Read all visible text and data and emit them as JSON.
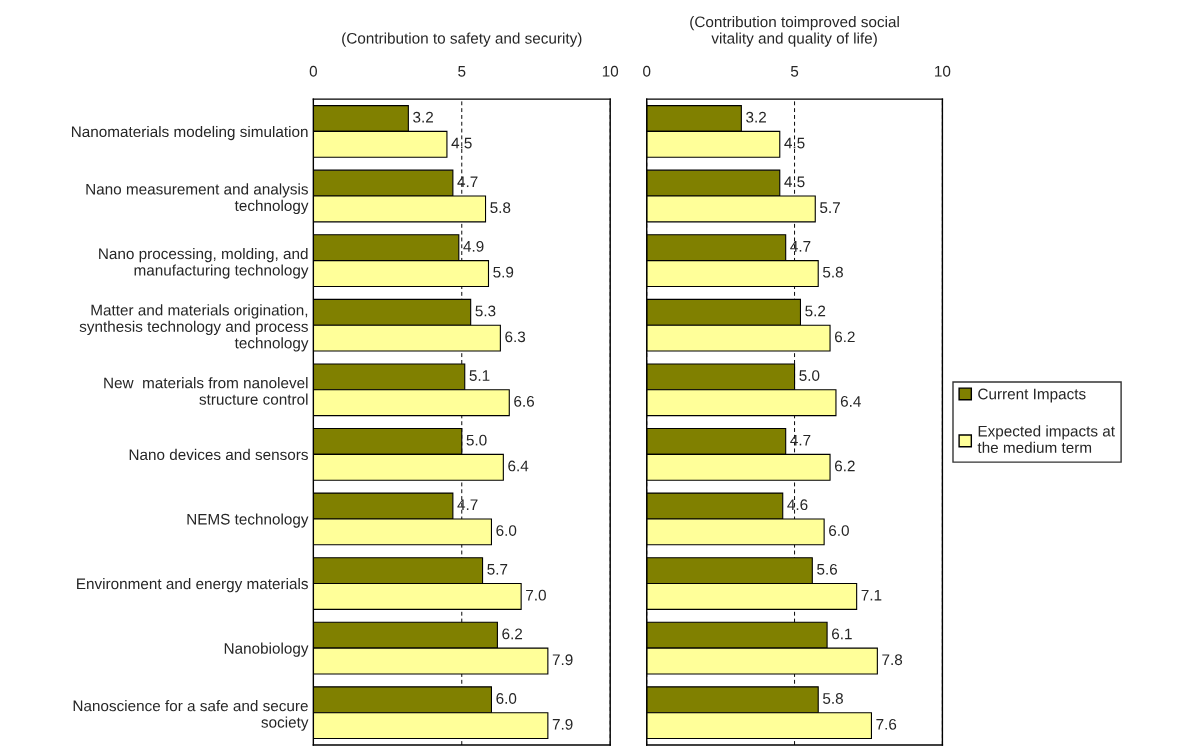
{
  "chart_data": [
    {
      "type": "bar",
      "orientation": "horizontal",
      "title": "(Contribution to safety and security)",
      "categories": [
        "Nanomaterials modeling simulation",
        "Nano measurement and analysis\ntechnology",
        "Nano processing, molding, and\nmanufacturing technology",
        "Matter and materials origination,\nsynthesis technology and process\ntechnology",
        "New  materials from nanolevel\nstructure control",
        "Nano devices and sensors",
        "NEMS technology",
        "Environment and energy materials",
        "Nanobiology",
        "Nanoscience for a safe and secure\nsociety"
      ],
      "series": [
        {
          "color": "#808000",
          "values": [
            3.2,
            4.7,
            4.9,
            5.3,
            5.1,
            5.0,
            4.7,
            5.7,
            6.2,
            6.0
          ],
          "value_labels": [
            "3.2",
            "4.7",
            "4.9",
            "5.3",
            "5.1",
            "5.0",
            "4.7",
            "5.7",
            "6.2",
            "6.0"
          ]
        },
        {
          "color": "#ffff99",
          "values": [
            4.5,
            5.8,
            5.9,
            6.3,
            6.6,
            6.4,
            6.0,
            7.0,
            7.9,
            7.9
          ],
          "value_labels": [
            "4.5",
            "5.8",
            "5.9",
            "6.3",
            "6.6",
            "6.4",
            "6.0",
            "7.0",
            "7.9",
            "7.9"
          ]
        }
      ],
      "xlim": [
        0,
        10
      ],
      "xticks": [
        0,
        5,
        10
      ],
      "grid": "x"
    },
    {
      "type": "bar",
      "orientation": "horizontal",
      "title": "(Contribution toimproved social\nvitality and quality of life)",
      "categories": [
        null,
        null,
        null,
        null,
        null,
        null,
        null,
        null,
        null,
        null
      ],
      "series": [
        {
          "name": "Current Impacts",
          "color": "#808000",
          "values": [
            3.2,
            4.5,
            4.7,
            5.2,
            5.0,
            4.7,
            4.6,
            5.6,
            6.1,
            5.8
          ],
          "value_labels": [
            "3.2",
            "4.5",
            "4.7",
            "5.2",
            "5.0",
            "4.7",
            "4.6",
            "5.6",
            "6.1",
            "5.8"
          ]
        },
        {
          "name": "Expected impacts at\nthe medium term",
          "color": "#ffff99",
          "values": [
            4.5,
            5.7,
            5.8,
            6.2,
            6.4,
            6.2,
            6.0,
            7.1,
            7.8,
            7.6
          ],
          "value_labels": [
            "4.5",
            "5.7",
            "5.8",
            "6.2",
            "6.4",
            "6.2",
            "6.0",
            "7.1",
            "7.8",
            "7.6"
          ]
        }
      ],
      "xlim": [
        0,
        10
      ],
      "xticks": [
        0,
        5,
        10
      ],
      "grid": "x",
      "legend": "right"
    }
  ]
}
